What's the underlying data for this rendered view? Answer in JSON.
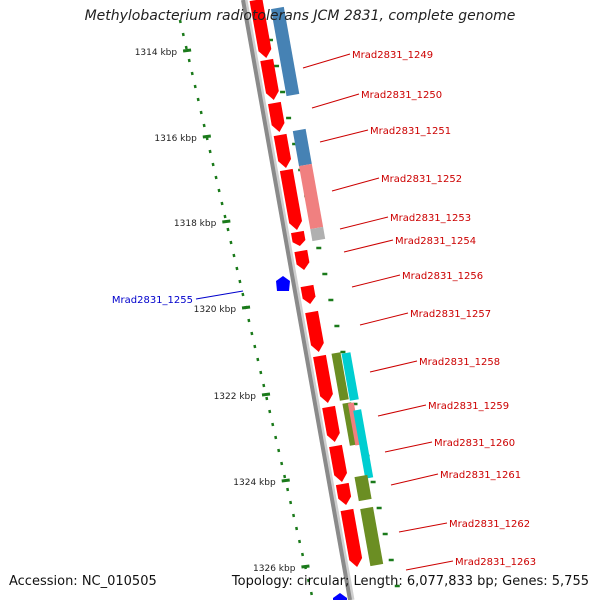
{
  "title": "Methylobacterium radiotolerans JCM 2831, complete genome",
  "footer": {
    "accession": "Accession: NC_010505",
    "summary": "Topology: circular; Length: 6,077,833 bp; Genes: 5,755"
  },
  "colors": {
    "backbone": "#8a8a8a",
    "tick": "#1a7a1a",
    "forward_gene": "#ff0000",
    "reverse_gene": "#0000ff",
    "forward_label": "#cc0000",
    "reverse_label": "#0000cc",
    "feature_blue": "#4682b4",
    "feature_pink": "#f08080",
    "feature_olive": "#6b8e23",
    "feature_cyan": "#00ced1",
    "feature_gray": "#b0b0b0"
  },
  "ticks": [
    {
      "label": "1314 kbp",
      "pos_kbp": 1314
    },
    {
      "label": "1316 kbp",
      "pos_kbp": 1316
    },
    {
      "label": "1318 kbp",
      "pos_kbp": 1318
    },
    {
      "label": "1320 kbp",
      "pos_kbp": 1320
    },
    {
      "label": "1322 kbp",
      "pos_kbp": 1322
    },
    {
      "label": "1324 kbp",
      "pos_kbp": 1324
    },
    {
      "label": "1326 kbp",
      "pos_kbp": 1326
    }
  ],
  "gene_labels": [
    {
      "name": "Mrad2831_1249",
      "strand": "forward"
    },
    {
      "name": "Mrad2831_1250",
      "strand": "forward"
    },
    {
      "name": "Mrad2831_1251",
      "strand": "forward"
    },
    {
      "name": "Mrad2831_1252",
      "strand": "forward"
    },
    {
      "name": "Mrad2831_1253",
      "strand": "forward"
    },
    {
      "name": "Mrad2831_1254",
      "strand": "forward"
    },
    {
      "name": "Mrad2831_1256",
      "strand": "forward"
    },
    {
      "name": "Mrad2831_1257",
      "strand": "forward"
    },
    {
      "name": "Mrad2831_1258",
      "strand": "forward"
    },
    {
      "name": "Mrad2831_1259",
      "strand": "forward"
    },
    {
      "name": "Mrad2831_1260",
      "strand": "forward"
    },
    {
      "name": "Mrad2831_1261",
      "strand": "forward"
    },
    {
      "name": "Mrad2831_1262",
      "strand": "forward"
    },
    {
      "name": "Mrad2831_1263",
      "strand": "forward"
    },
    {
      "name": "Mrad2831_1255",
      "strand": "reverse"
    }
  ]
}
